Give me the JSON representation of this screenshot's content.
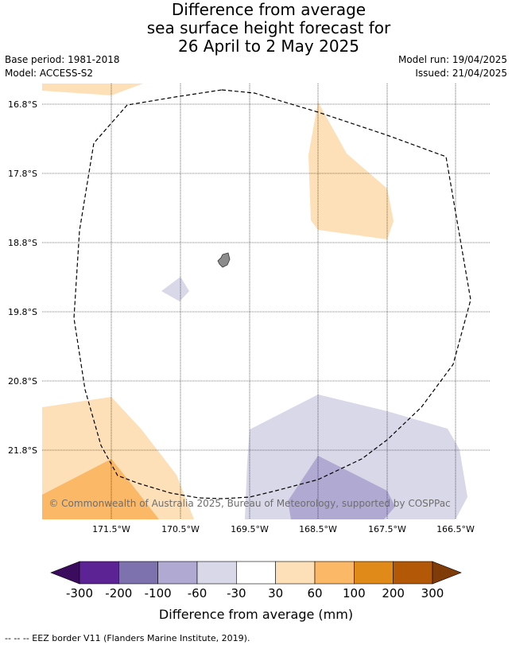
{
  "title": {
    "line1": "Difference from average",
    "line2": "sea surface height forecast for",
    "line3": "26 April to 2 May 2025"
  },
  "meta": {
    "base_period": "Base period: 1981-2018",
    "model": "Model: ACCESS-S2",
    "model_run": "Model run: 19/04/2025",
    "issued": "Issued: 21/04/2025"
  },
  "map": {
    "lat_labels": [
      "16.8°S",
      "17.8°S",
      "18.8°S",
      "19.8°S",
      "20.8°S",
      "21.8°S"
    ],
    "lon_labels": [
      "171.5°W",
      "170.5°W",
      "169.5°W",
      "168.5°W",
      "167.5°W",
      "166.5°W"
    ],
    "copyright": "© Commonwealth of Australia 2025, Bureau of Meteorology, supported by COSPPac",
    "colors": {
      "pos_30_60": "#fde0b8",
      "pos_60_100": "#fbb866",
      "neg_30_60": "#d8d8e9",
      "neg_60_100": "#b0a9d2",
      "land": "#8c8c8c"
    }
  },
  "colorbar": {
    "tick_labels": [
      "-300",
      "-200",
      "-100",
      "-60",
      "-30",
      "30",
      "60",
      "100",
      "200",
      "300"
    ],
    "label": "Difference from average (mm)",
    "colors": [
      "#3b0c5e",
      "#5b2393",
      "#7e72ae",
      "#b0a9d2",
      "#d8d8e9",
      "#ffffff",
      "#fde0b8",
      "#fbb866",
      "#e08a1a",
      "#b35806",
      "#7f3b08"
    ]
  },
  "footer": {
    "legend": "--  --  -- EEZ border V11 (Flanders Marine Institute, 2019)."
  }
}
